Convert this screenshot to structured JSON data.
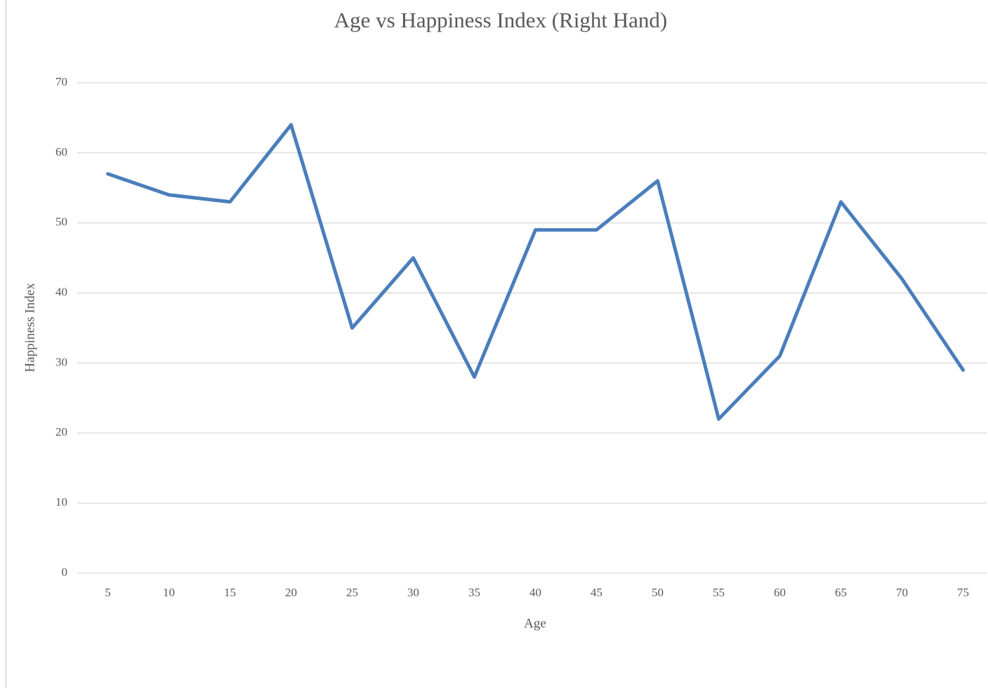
{
  "chart_data": {
    "type": "line",
    "title": "Age vs Happiness Index (Right Hand)",
    "x_label": "Age",
    "y_label": "Happiness Index",
    "categories": [
      "5",
      "10",
      "15",
      "20",
      "25",
      "30",
      "35",
      "40",
      "45",
      "50",
      "55",
      "60",
      "65",
      "70",
      "75"
    ],
    "series": [
      {
        "name": "Happiness Index",
        "color": "#4a7ebb",
        "values": [
          57,
          54,
          53,
          64,
          35,
          45,
          28,
          49,
          49,
          56,
          22,
          31,
          53,
          42,
          29
        ]
      }
    ],
    "ylim": [
      0,
      70
    ],
    "yticks": [
      0,
      10,
      20,
      30,
      40,
      50,
      60,
      70
    ],
    "grid": true
  }
}
